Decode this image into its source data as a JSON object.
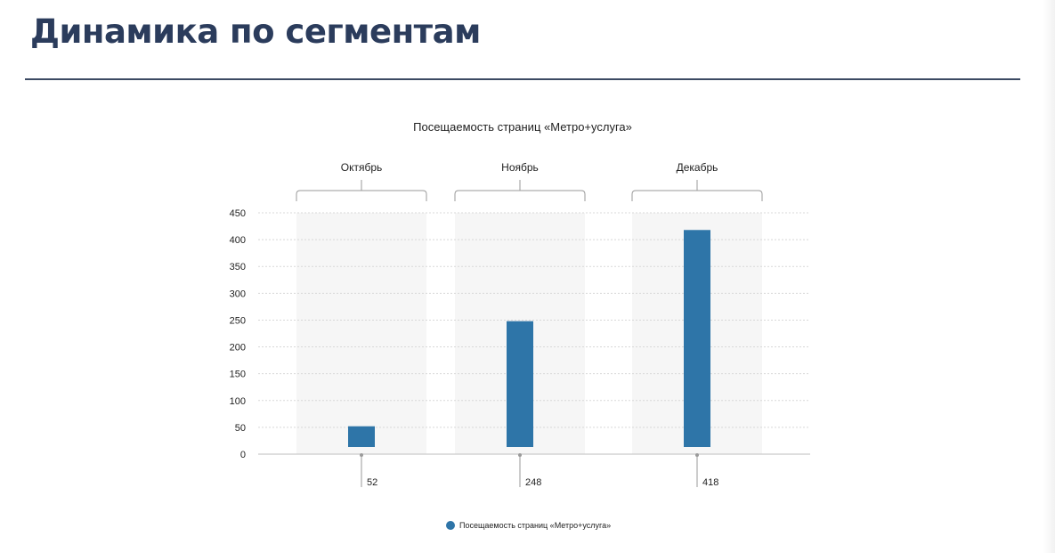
{
  "slide": {
    "title": "Динамика по сегментам"
  },
  "chart_data": {
    "type": "bar",
    "title": "Посещаемость страниц «Метро+услуга»",
    "categories": [
      "Октябрь",
      "Ноябрь",
      "Декабрь"
    ],
    "series": [
      {
        "name": "Посещаемость страниц «Метро+услуга»",
        "values": [
          52,
          248,
          418
        ],
        "color": "#2e75a8"
      }
    ],
    "data_labels": [
      "52",
      "248",
      "418"
    ],
    "yticks": [
      0,
      50,
      100,
      150,
      200,
      250,
      300,
      350,
      400,
      450
    ],
    "ylim": [
      0,
      450
    ],
    "xlabel": "",
    "ylabel": "",
    "grid": true,
    "legend_position": "bottom"
  }
}
